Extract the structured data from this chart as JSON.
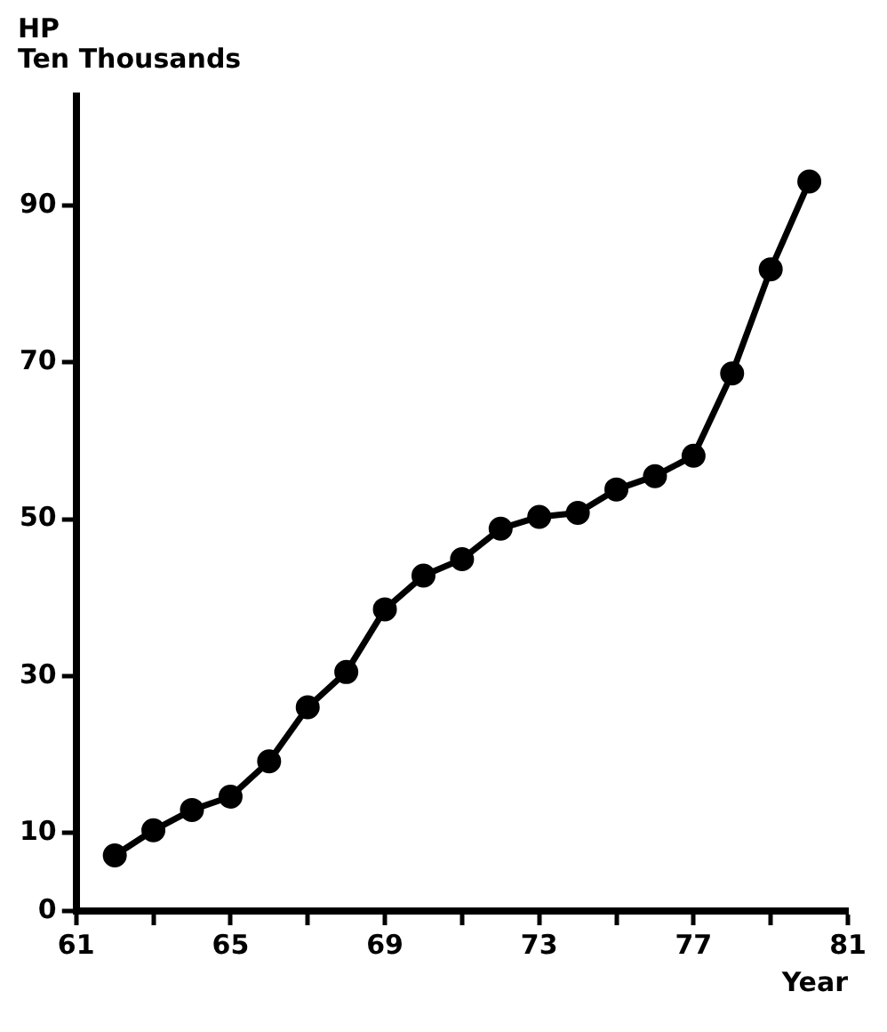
{
  "chart_data": {
    "type": "line",
    "ylabel": "HP\nTen Thousands",
    "xlabel": "Year",
    "x": [
      62,
      63,
      64,
      65,
      66,
      67,
      68,
      69,
      70,
      71,
      72,
      73,
      74,
      75,
      76,
      77,
      78,
      79,
      80
    ],
    "series": [
      {
        "color": "#000000",
        "values": [
          7.1,
          10.3,
          12.9,
          14.6,
          19.1,
          26,
          30.5,
          38.5,
          42.8,
          44.9,
          48.8,
          50.3,
          50.8,
          53.8,
          55.5,
          58.1,
          68.6,
          81.9,
          93.1
        ]
      }
    ],
    "xlim": [
      61,
      81
    ],
    "xticks": [
      61,
      {
        "value": 63,
        "label": null
      },
      65,
      {
        "value": 67,
        "label": null
      },
      69,
      {
        "value": 71,
        "label": null
      },
      73,
      {
        "value": 75,
        "label": null
      },
      77,
      {
        "value": 79,
        "label": null
      },
      81
    ],
    "ylim": [
      0,
      104
    ],
    "yticks": [
      0,
      10,
      30,
      50,
      70,
      90
    ],
    "grid": false,
    "legend": false,
    "marker": "circle",
    "line_style": "solid"
  }
}
